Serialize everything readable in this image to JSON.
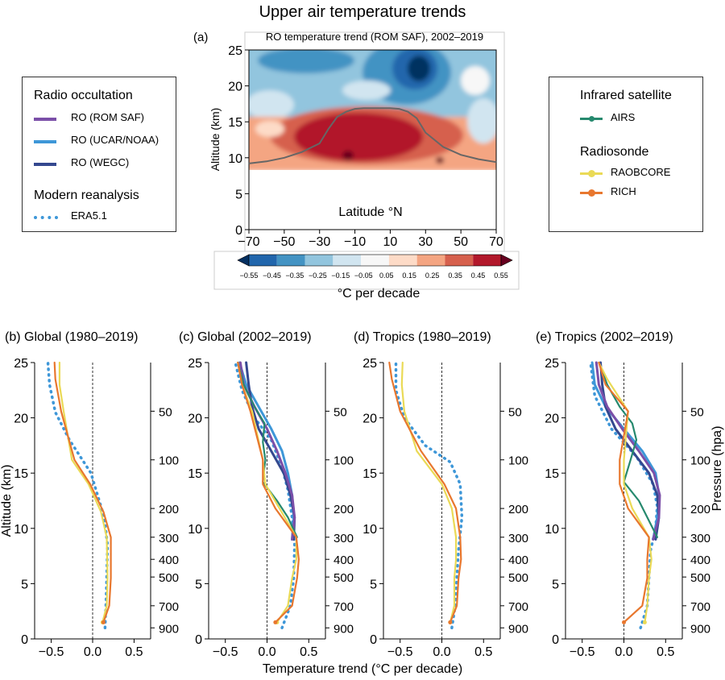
{
  "figure_title": "Upper air temperature trends",
  "colors": {
    "ro_romsaf": "#7b4fa8",
    "ro_ucar": "#3e97d8",
    "ro_wegc": "#34488f",
    "era5": "#3e97d8",
    "airs": "#26896e",
    "raobcore": "#eada56",
    "rich": "#e8772e"
  },
  "legend_left": {
    "group1_title": "Radio occultation",
    "ro_romsaf": "RO (ROM SAF)",
    "ro_ucar": "RO (UCAR/NOAA)",
    "ro_wegc": "RO (WEGC)",
    "group2_title": "Modern reanalysis",
    "era5": "ERA5.1"
  },
  "legend_right": {
    "group1_title": "Infrared satellite",
    "airs": "AIRS",
    "group2_title": "Radiosonde",
    "raobcore": "RAOBCORE",
    "rich": "RICH"
  },
  "shared_xlabel": "Temperature trend (°C per decade)",
  "chart_data": [
    {
      "panel": "(a)",
      "type": "heatmap",
      "title": "RO temperature trend (ROM SAF), 2002–2019",
      "xlabel": "Latitude °N",
      "ylabel": "Altitude (km)",
      "xlim": [
        -70,
        70
      ],
      "ylim": [
        0,
        25
      ],
      "xticks": [
        -70,
        -50,
        -30,
        -10,
        10,
        30,
        50,
        70
      ],
      "yticks": [
        0,
        5,
        10,
        15,
        20,
        25
      ],
      "colorbar_label": "°C per decade",
      "colorbar_ticks": [
        "−0.55",
        "−0.45",
        "−0.35",
        "−0.25",
        "−0.15",
        "−0.05",
        "0.05",
        "0.15",
        "0.25",
        "0.35",
        "0.45",
        "0.55"
      ],
      "colorbar_colors": [
        "#053061",
        "#2166ac",
        "#4393c3",
        "#92c5de",
        "#d1e5f0",
        "#f7f7f7",
        "#fddbc7",
        "#f4a582",
        "#d6604d",
        "#b2182b",
        "#67001f"
      ],
      "tropopause_line": {
        "lat": [
          -70,
          -60,
          -50,
          -40,
          -30,
          -25,
          -20,
          -15,
          -10,
          -5,
          0,
          5,
          10,
          15,
          20,
          25,
          30,
          40,
          50,
          60,
          70
        ],
        "alt": [
          9.2,
          9.5,
          10.0,
          10.8,
          12.0,
          14.0,
          15.7,
          16.4,
          16.8,
          16.9,
          16.9,
          16.9,
          16.9,
          16.8,
          16.4,
          15.5,
          13.5,
          11.5,
          10.4,
          9.8,
          9.4
        ]
      }
    },
    {
      "panel": "(b)",
      "type": "line",
      "title": "Global (1980–2019)",
      "ylabel": "Altitude (km)",
      "xlim": [
        -0.7,
        0.7
      ],
      "ylim": [
        0,
        25
      ],
      "xticks": [
        "−0.5",
        "0.0",
        "0.5"
      ],
      "yticks": [
        0,
        5,
        10,
        15,
        20,
        25
      ],
      "pressure_ticks": [
        {
          "label": "50",
          "alt": 20.6
        },
        {
          "label": "100",
          "alt": 16.2
        },
        {
          "label": "200",
          "alt": 11.8
        },
        {
          "label": "300",
          "alt": 9.2
        },
        {
          "label": "400",
          "alt": 7.2
        },
        {
          "label": "500",
          "alt": 5.6
        },
        {
          "label": "700",
          "alt": 3.0
        },
        {
          "label": "900",
          "alt": 1.0
        }
      ],
      "series": [
        {
          "key": "era5",
          "x": [
            0.15,
            0.16,
            0.17,
            0.18,
            0.14,
            -0.02,
            -0.28,
            -0.45,
            -0.52,
            -0.54
          ],
          "y": [
            1.0,
            3.0,
            5.5,
            8.5,
            11.0,
            15.0,
            18.0,
            20.5,
            23.0,
            25.0
          ]
        },
        {
          "key": "raobcore",
          "x": [
            0.12,
            0.17,
            0.18,
            0.17,
            0.1,
            -0.05,
            -0.25,
            -0.35,
            -0.4,
            -0.4
          ],
          "y": [
            1.5,
            3.0,
            5.5,
            9.2,
            11.5,
            14.0,
            16.2,
            20.6,
            23.0,
            25.0
          ]
        },
        {
          "key": "rich",
          "x": [
            0.13,
            0.2,
            0.22,
            0.22,
            0.13,
            -0.03,
            -0.22,
            -0.38,
            -0.45,
            -0.46
          ],
          "y": [
            1.5,
            3.0,
            5.5,
            9.2,
            11.5,
            14.0,
            16.2,
            20.6,
            23.5,
            25.0
          ]
        }
      ]
    },
    {
      "panel": "(c)",
      "type": "line",
      "title": "Global (2002–2019)",
      "xlim": [
        -0.7,
        0.7
      ],
      "ylim": [
        0,
        25
      ],
      "xticks": [
        "−0.5",
        "0.0",
        "0.5"
      ],
      "yticks": [
        0,
        5,
        10,
        15,
        20,
        25
      ],
      "pressure_ticks": [
        {
          "label": "50",
          "alt": 20.6
        },
        {
          "label": "100",
          "alt": 16.2
        },
        {
          "label": "200",
          "alt": 11.8
        },
        {
          "label": "300",
          "alt": 9.2
        },
        {
          "label": "400",
          "alt": 7.2
        },
        {
          "label": "500",
          "alt": 5.6
        },
        {
          "label": "700",
          "alt": 3.0
        },
        {
          "label": "900",
          "alt": 1.0
        }
      ],
      "series": [
        {
          "key": "era5",
          "x": [
            0.18,
            0.28,
            0.32,
            0.33,
            0.3,
            0.25,
            0.18,
            0.05,
            -0.15,
            -0.3,
            -0.38
          ],
          "y": [
            1.0,
            3.0,
            5.5,
            8.5,
            11.0,
            13.5,
            15.5,
            18.0,
            20.0,
            22.5,
            25.0
          ]
        },
        {
          "key": "ro_ucar",
          "x": [
            0.3,
            0.32,
            0.3,
            0.25,
            0.18,
            0.05,
            -0.1,
            -0.25,
            -0.33
          ],
          "y": [
            9.0,
            11.0,
            13.0,
            15.0,
            17.0,
            19.0,
            21.0,
            23.0,
            25.0
          ]
        },
        {
          "key": "ro_wegc",
          "x": [
            0.32,
            0.33,
            0.28,
            0.2,
            0.05,
            -0.1,
            -0.18,
            -0.22,
            -0.25
          ],
          "y": [
            9.0,
            11.0,
            13.0,
            15.0,
            17.0,
            19.0,
            21.0,
            23.0,
            25.0
          ]
        },
        {
          "key": "ro_romsaf",
          "x": [
            0.3,
            0.33,
            0.3,
            0.22,
            0.12,
            0.0,
            -0.15,
            -0.28,
            -0.32
          ],
          "y": [
            9.0,
            11.0,
            13.0,
            15.0,
            17.0,
            19.0,
            21.0,
            23.0,
            25.0
          ]
        },
        {
          "key": "airs",
          "x": [
            0.36,
            0.25,
            0.12,
            -0.05,
            -0.02,
            -0.05,
            -0.03,
            -0.15,
            -0.28,
            -0.35
          ],
          "y": [
            9.2,
            11.0,
            12.5,
            14.2,
            16.2,
            17.8,
            19.5,
            21.0,
            23.0,
            25.0
          ]
        },
        {
          "key": "raobcore",
          "x": [
            0.12,
            0.25,
            0.3,
            0.35,
            0.35,
            0.15,
            -0.02,
            -0.05,
            -0.18,
            -0.3,
            -0.35
          ],
          "y": [
            1.5,
            3.0,
            5.5,
            7.2,
            9.2,
            11.8,
            14.0,
            16.2,
            20.6,
            23.0,
            25.0
          ]
        },
        {
          "key": "rich",
          "x": [
            0.1,
            0.3,
            0.36,
            0.38,
            0.35,
            0.1,
            -0.05,
            -0.05,
            -0.2,
            -0.3,
            -0.35
          ],
          "y": [
            1.5,
            3.0,
            5.5,
            7.2,
            9.2,
            11.8,
            14.0,
            16.2,
            20.6,
            23.0,
            25.0
          ]
        }
      ]
    },
    {
      "panel": "(d)",
      "type": "line",
      "title": "Tropics (1980–2019)",
      "xlim": [
        -0.7,
        0.7
      ],
      "ylim": [
        0,
        25
      ],
      "xticks": [
        "−0.5",
        "0.0",
        "0.5"
      ],
      "yticks": [
        0,
        5,
        10,
        15,
        20,
        25
      ],
      "pressure_ticks": [
        {
          "label": "50",
          "alt": 20.6
        },
        {
          "label": "100",
          "alt": 16.2
        },
        {
          "label": "200",
          "alt": 11.8
        },
        {
          "label": "300",
          "alt": 9.2
        },
        {
          "label": "400",
          "alt": 7.2
        },
        {
          "label": "500",
          "alt": 5.6
        },
        {
          "label": "700",
          "alt": 3.0
        },
        {
          "label": "900",
          "alt": 1.0
        }
      ],
      "series": [
        {
          "key": "era5",
          "x": [
            0.12,
            0.16,
            0.18,
            0.2,
            0.24,
            0.22,
            0.1,
            -0.2,
            -0.45,
            -0.55,
            -0.55
          ],
          "y": [
            1.0,
            3.0,
            5.5,
            8.0,
            11.0,
            14.0,
            16.0,
            17.5,
            20.0,
            22.5,
            25.0
          ]
        },
        {
          "key": "raobcore",
          "x": [
            0.1,
            0.15,
            0.15,
            0.17,
            0.17,
            0.12,
            0.0,
            -0.3,
            -0.45,
            -0.48,
            -0.47
          ],
          "y": [
            1.5,
            3.0,
            5.5,
            7.2,
            9.2,
            11.8,
            14.0,
            17.0,
            20.6,
            23.0,
            25.0
          ]
        },
        {
          "key": "rich",
          "x": [
            0.1,
            0.18,
            0.2,
            0.23,
            0.22,
            0.17,
            0.03,
            -0.25,
            -0.5,
            -0.6,
            -0.63
          ],
          "y": [
            1.5,
            3.0,
            5.5,
            7.2,
            9.2,
            11.8,
            14.0,
            17.0,
            20.6,
            23.5,
            25.0
          ]
        }
      ]
    },
    {
      "panel": "(e)",
      "type": "line",
      "title": "Tropics (2002–2019)",
      "ylabel_right": "Pressure (hpa)",
      "xlim": [
        -0.7,
        0.7
      ],
      "ylim": [
        0,
        25
      ],
      "xticks": [
        "−0.5",
        "0.0",
        "0.5"
      ],
      "yticks": [
        0,
        5,
        10,
        15,
        20,
        25
      ],
      "pressure_ticks": [
        {
          "label": "50",
          "alt": 20.6
        },
        {
          "label": "100",
          "alt": 16.2
        },
        {
          "label": "200",
          "alt": 11.8
        },
        {
          "label": "300",
          "alt": 9.2
        },
        {
          "label": "400",
          "alt": 7.2
        },
        {
          "label": "500",
          "alt": 5.6
        },
        {
          "label": "700",
          "alt": 3.0
        },
        {
          "label": "900",
          "alt": 1.0
        }
      ],
      "series": [
        {
          "key": "era5",
          "x": [
            0.2,
            0.28,
            0.3,
            0.32,
            0.38,
            0.4,
            0.35,
            0.15,
            -0.15,
            -0.35,
            -0.4
          ],
          "y": [
            1.0,
            3.0,
            5.5,
            8.0,
            10.0,
            12.0,
            14.0,
            16.5,
            19.0,
            22.0,
            25.0
          ]
        },
        {
          "key": "ro_ucar",
          "x": [
            0.35,
            0.4,
            0.42,
            0.38,
            0.22,
            0.0,
            -0.22,
            -0.35,
            -0.38
          ],
          "y": [
            9.0,
            11.0,
            13.0,
            15.0,
            17.0,
            19.0,
            21.0,
            23.0,
            25.0
          ]
        },
        {
          "key": "ro_wegc",
          "x": [
            0.38,
            0.42,
            0.4,
            0.3,
            0.1,
            -0.1,
            -0.22,
            -0.26,
            -0.28
          ],
          "y": [
            9.0,
            11.0,
            13.0,
            15.0,
            17.0,
            19.0,
            21.0,
            23.0,
            25.0
          ]
        },
        {
          "key": "ro_romsaf",
          "x": [
            0.35,
            0.42,
            0.43,
            0.36,
            0.18,
            -0.02,
            -0.2,
            -0.3,
            -0.33
          ],
          "y": [
            9.0,
            11.0,
            13.0,
            15.0,
            17.0,
            19.0,
            21.0,
            23.0,
            25.0
          ]
        },
        {
          "key": "airs",
          "x": [
            0.4,
            0.28,
            0.18,
            0.0,
            0.08,
            0.15,
            0.1,
            -0.05,
            -0.2,
            -0.3
          ],
          "y": [
            9.2,
            11.0,
            12.5,
            14.2,
            16.2,
            18.0,
            19.5,
            21.0,
            23.0,
            25.0
          ]
        },
        {
          "key": "raobcore",
          "x": [
            0.25,
            0.28,
            0.3,
            0.33,
            0.3,
            0.1,
            0.0,
            0.0,
            0.05,
            -0.2,
            -0.3
          ],
          "y": [
            1.5,
            3.0,
            5.5,
            7.2,
            9.2,
            11.8,
            14.0,
            16.2,
            20.6,
            23.5,
            25.0
          ]
        },
        {
          "key": "rich",
          "x": [
            0.0,
            0.22,
            0.28,
            0.28,
            0.3,
            0.05,
            -0.05,
            -0.05,
            0.05,
            -0.22,
            -0.3
          ],
          "y": [
            1.5,
            3.0,
            5.5,
            7.2,
            9.2,
            11.8,
            14.0,
            16.2,
            20.6,
            23.0,
            25.0
          ]
        }
      ]
    }
  ]
}
